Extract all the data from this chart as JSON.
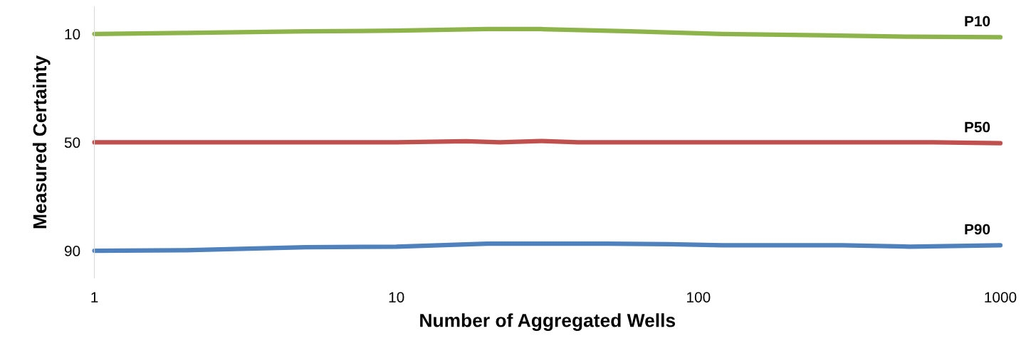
{
  "chart_data": {
    "type": "line",
    "xlabel": "Number of Aggregated Wells",
    "ylabel": "Measured Certainty",
    "log": "x",
    "xlim": [
      1,
      1000
    ],
    "xticks": [
      1,
      10,
      100,
      1000
    ],
    "ylim": [
      100,
      0
    ],
    "yticks": [
      10,
      50,
      90
    ],
    "grid": false,
    "legend": false,
    "marker": "none",
    "line_style": "solid",
    "series": [
      {
        "name": "P10",
        "color": "#8db44a",
        "x": [
          1,
          2,
          5,
          10,
          20,
          30,
          60,
          120,
          250,
          500,
          1000
        ],
        "values": [
          10,
          9.6,
          9.0,
          8.8,
          8.2,
          8.2,
          9.0,
          10,
          10.5,
          11,
          11.2
        ]
      },
      {
        "name": "P50",
        "color": "#c0504d",
        "x": [
          1,
          10,
          17,
          22,
          30,
          40,
          100,
          600,
          1000
        ],
        "values": [
          50,
          50,
          49.6,
          50,
          49.5,
          50,
          50,
          50,
          50.3
        ]
      },
      {
        "name": "P90",
        "color": "#4f81bd",
        "x": [
          1,
          2,
          5,
          10,
          20,
          50,
          80,
          120,
          300,
          500,
          1000
        ],
        "values": [
          90,
          89.8,
          88.7,
          88.5,
          87.4,
          87.4,
          87.6,
          88,
          88,
          88.5,
          88
        ]
      }
    ]
  }
}
